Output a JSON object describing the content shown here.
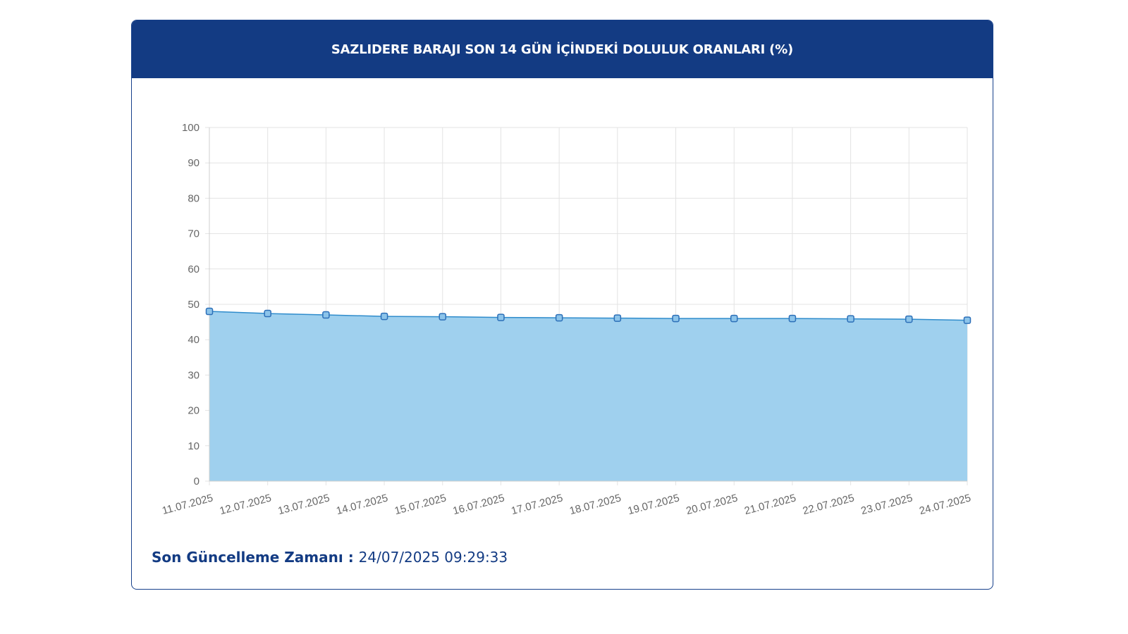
{
  "card": {
    "title": "SAZLIDERE BARAJI SON 14 GÜN İÇİNDEKİ DOLULUK ORANLARI (%)",
    "header_color": "#133b83"
  },
  "footer": {
    "label": "Son Güncelleme Zamanı",
    "separator": " : ",
    "timestamp": "24/07/2025 09:29:33"
  },
  "chart_data": {
    "type": "area",
    "categories": [
      "11.07.2025",
      "12.07.2025",
      "13.07.2025",
      "14.07.2025",
      "15.07.2025",
      "16.07.2025",
      "17.07.2025",
      "18.07.2025",
      "19.07.2025",
      "20.07.2025",
      "21.07.2025",
      "22.07.2025",
      "23.07.2025",
      "24.07.2025"
    ],
    "series": [
      {
        "values": [
          48.0,
          47.4,
          47.0,
          46.6,
          46.5,
          46.3,
          46.2,
          46.1,
          46.0,
          46.0,
          46.0,
          45.9,
          45.8,
          45.5
        ]
      }
    ],
    "ylim": [
      0,
      100
    ],
    "yticks": [
      0,
      10,
      20,
      30,
      40,
      50,
      60,
      70,
      80,
      90,
      100
    ],
    "grid": true,
    "line_color": "#2f8ccc",
    "fill_color": "#9fd0ee",
    "marker_color": "#2c6fb8"
  }
}
